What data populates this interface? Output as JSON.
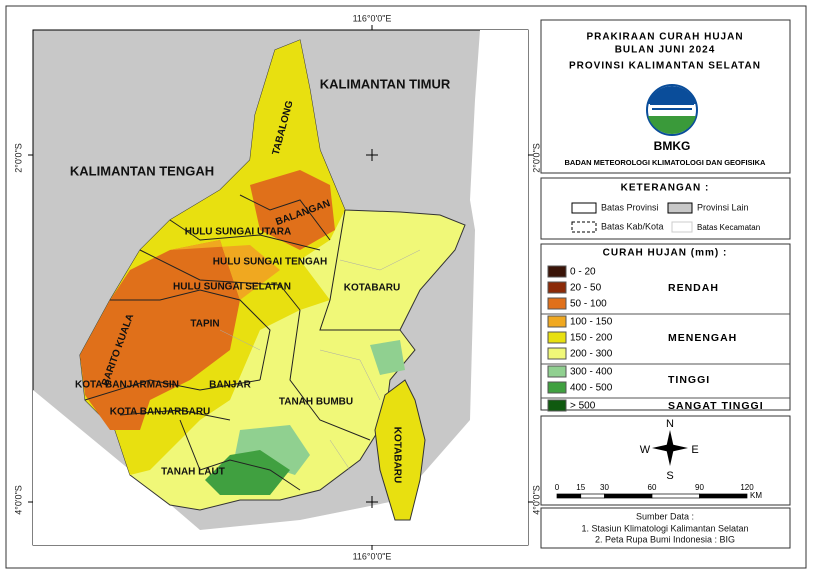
{
  "map": {
    "graticule": {
      "top": "116°0'0\"E",
      "bottom": "116°0'0\"E",
      "left_north": "2°0'0\"S",
      "right_north": "2°0'0\"S",
      "left_south": "4°0'0\"S",
      "right_south": "4°0'0\"S"
    },
    "regions": [
      "KALIMANTAN TIMUR",
      "KALIMANTAN TENGAH",
      "TABALONG",
      "BALANGAN",
      "HULU SUNGAI UTARA",
      "HULU SUNGAI TENGAH",
      "HULU SUNGAI SELATAN",
      "TAPIN",
      "BARITO KUALA",
      "KOTA BANJARMASIN",
      "BANJAR",
      "KOTA BANJARBARU",
      "TANAH LAUT",
      "TANAH BUMBU",
      "KOTABARU",
      "KOTABARU"
    ]
  },
  "header": {
    "title": [
      "PRAKIRAAN CURAH HUJAN",
      "BULAN JUNI 2024",
      "PROVINSI KALIMANTAN SELATAN"
    ],
    "logo_text": "BMKG",
    "agency": "BADAN METEOROLOGI KLIMATOLOGI DAN GEOFISIKA"
  },
  "keterangan": {
    "title": "KETERANGAN :",
    "items": [
      "Batas Provinsi",
      "Provinsi Lain",
      "Batas Kab/Kota",
      "Batas Kecamatan"
    ]
  },
  "legend": {
    "title": "CURAH HUJAN (mm) :",
    "groups": [
      {
        "label": "RENDAH",
        "classes": [
          {
            "range": "0 - 20",
            "color": "#3a1408"
          },
          {
            "range": "20 - 50",
            "color": "#8b2a08"
          },
          {
            "range": "50 - 100",
            "color": "#e0701a"
          }
        ]
      },
      {
        "label": "MENENGAH",
        "classes": [
          {
            "range": "100 - 150",
            "color": "#f0a820"
          },
          {
            "range": "150  - 200",
            "color": "#e8e010"
          },
          {
            "range": "200 - 300",
            "color": "#f0f878"
          }
        ]
      },
      {
        "label": "TINGGI",
        "classes": [
          {
            "range": "300 - 400",
            "color": "#90d090"
          },
          {
            "range": "400 - 500",
            "color": "#40a040"
          }
        ]
      },
      {
        "label": "SANGAT TINGGI",
        "classes": [
          {
            "range": "> 500",
            "color": "#105a10"
          }
        ]
      }
    ]
  },
  "compass": {
    "n": "N",
    "s": "S",
    "w": "W",
    "e": "E"
  },
  "scale": {
    "ticks": [
      0,
      15,
      30,
      60,
      90,
      120
    ],
    "unit": "KM"
  },
  "source": {
    "title": "Sumber Data :",
    "items": [
      "1. Stasiun Klimatologi Kalimantan Selatan",
      "2. Peta Rupa Bumi Indonesia : BIG"
    ]
  }
}
